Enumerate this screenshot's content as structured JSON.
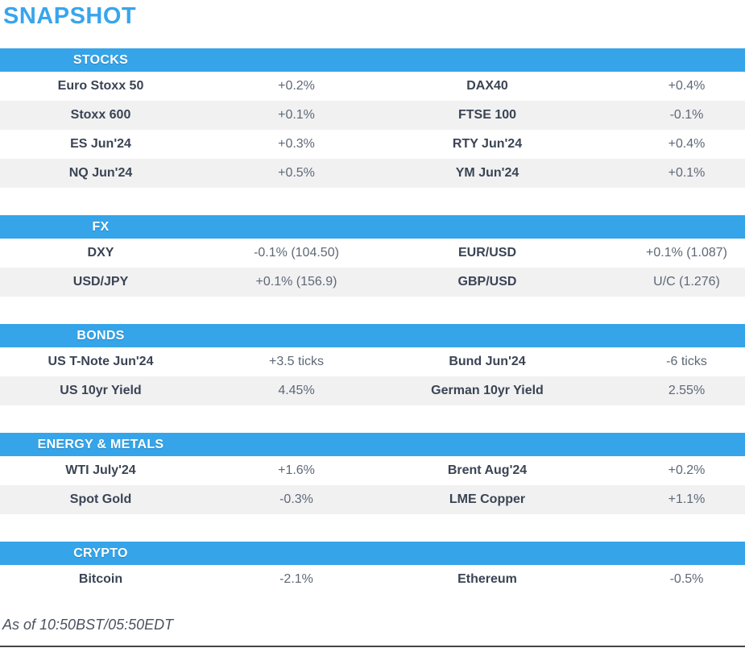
{
  "title": "SNAPSHOT",
  "colors": {
    "accent_blue": "#35a4e9",
    "title_blue": "#37a5ee",
    "header_text": "#ffffff",
    "instrument_text": "#3a4454",
    "value_text": "#5e6877",
    "row_alt_bg": "#f1f1f2"
  },
  "sections": [
    {
      "label": "STOCKS",
      "rows": [
        {
          "name1": "Euro Stoxx 50",
          "val1": "+0.2%",
          "name2": "DAX40",
          "val2": "+0.4%"
        },
        {
          "name1": "Stoxx 600",
          "val1": "+0.1%",
          "name2": "FTSE 100",
          "val2": "-0.1%"
        },
        {
          "name1": "ES Jun'24",
          "val1": "+0.3%",
          "name2": "RTY Jun'24",
          "val2": "+0.4%"
        },
        {
          "name1": "NQ Jun'24",
          "val1": "+0.5%",
          "name2": "YM Jun'24",
          "val2": "+0.1%"
        }
      ]
    },
    {
      "label": "FX",
      "rows": [
        {
          "name1": "DXY",
          "val1": "-0.1% (104.50)",
          "name2": "EUR/USD",
          "val2": "+0.1% (1.087)"
        },
        {
          "name1": "USD/JPY",
          "val1": "+0.1% (156.9)",
          "name2": "GBP/USD",
          "val2": "U/C (1.276)"
        }
      ]
    },
    {
      "label": "BONDS",
      "rows": [
        {
          "name1": "US T-Note Jun'24",
          "val1": "+3.5 ticks",
          "name2": "Bund Jun'24",
          "val2": "-6 ticks"
        },
        {
          "name1": "US 10yr Yield",
          "val1": "4.45%",
          "name2": "German 10yr Yield",
          "val2": "2.55%"
        }
      ]
    },
    {
      "label": "ENERGY & METALS",
      "rows": [
        {
          "name1": "WTI July'24",
          "val1": "+1.6%",
          "name2": "Brent Aug'24",
          "val2": "+0.2%"
        },
        {
          "name1": "Spot Gold",
          "val1": "-0.3%",
          "name2": "LME Copper",
          "val2": "+1.1%"
        }
      ]
    },
    {
      "label": "CRYPTO",
      "rows": [
        {
          "name1": "Bitcoin",
          "val1": "-2.1%",
          "name2": "Ethereum",
          "val2": "-0.5%"
        }
      ]
    }
  ],
  "footer": {
    "as_of": "As of 10:50BST/05:50EDT"
  }
}
